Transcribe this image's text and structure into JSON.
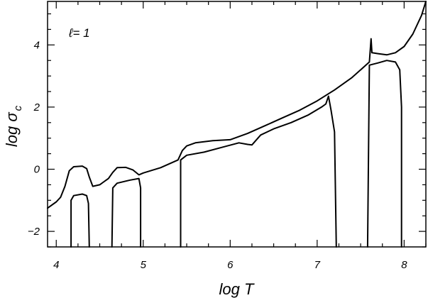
{
  "chart_data": {
    "type": "line",
    "title": "",
    "annotation": "ℓ= 1",
    "xlabel": "log T",
    "ylabel_main": "log σ",
    "ylabel_sub": "c",
    "xlim": [
      3.9,
      8.25
    ],
    "ylim": [
      -2.5,
      5.4
    ],
    "xticks": [
      4,
      5,
      6,
      7,
      8
    ],
    "xtick_labels": [
      "4",
      "5",
      "6",
      "7",
      "8"
    ],
    "yticks": [
      -2,
      0,
      2,
      4
    ],
    "ytick_labels": [
      "−2",
      "0",
      "2",
      "4"
    ],
    "x_minor_step": 0.25,
    "y_minor_step": 0.5,
    "grid": false,
    "series": [
      {
        "points": [
          [
            3.9,
            -1.25
          ],
          [
            4.0,
            -1.05
          ],
          [
            4.05,
            -0.9
          ],
          [
            4.1,
            -0.55
          ],
          [
            4.15,
            -0.05
          ],
          [
            4.2,
            0.08
          ],
          [
            4.3,
            0.1
          ],
          [
            4.35,
            0.02
          ],
          [
            4.38,
            -0.25
          ],
          [
            4.42,
            -0.55
          ],
          [
            4.5,
            -0.5
          ],
          [
            4.55,
            -0.4
          ],
          [
            4.6,
            -0.3
          ],
          [
            4.65,
            -0.1
          ],
          [
            4.7,
            0.05
          ],
          [
            4.8,
            0.06
          ],
          [
            4.88,
            -0.02
          ],
          [
            4.95,
            -0.18
          ],
          [
            5.0,
            -0.12
          ],
          [
            5.2,
            0.05
          ],
          [
            5.4,
            0.3
          ],
          [
            5.45,
            0.6
          ],
          [
            5.5,
            0.75
          ],
          [
            5.6,
            0.85
          ],
          [
            5.8,
            0.92
          ],
          [
            6.0,
            0.95
          ],
          [
            6.2,
            1.15
          ],
          [
            6.4,
            1.4
          ],
          [
            6.6,
            1.65
          ],
          [
            6.8,
            1.9
          ],
          [
            7.0,
            2.2
          ],
          [
            7.2,
            2.55
          ],
          [
            7.4,
            2.95
          ],
          [
            7.6,
            3.45
          ],
          [
            7.62,
            4.2
          ],
          [
            7.63,
            3.75
          ],
          [
            7.7,
            3.72
          ],
          [
            7.8,
            3.68
          ],
          [
            7.9,
            3.75
          ],
          [
            8.0,
            3.95
          ],
          [
            8.1,
            4.35
          ],
          [
            8.2,
            4.95
          ],
          [
            8.25,
            5.4
          ]
        ]
      },
      {
        "segments": [
          [
            [
              4.17,
              -2.5
            ],
            [
              4.17,
              -1.0
            ],
            [
              4.2,
              -0.85
            ],
            [
              4.3,
              -0.8
            ],
            [
              4.35,
              -0.85
            ],
            [
              4.37,
              -1.1
            ],
            [
              4.38,
              -2.5
            ]
          ],
          [
            [
              4.64,
              -2.5
            ],
            [
              4.65,
              -0.6
            ],
            [
              4.7,
              -0.45
            ],
            [
              4.85,
              -0.35
            ],
            [
              4.95,
              -0.3
            ],
            [
              4.97,
              -0.6
            ],
            [
              4.97,
              -2.5
            ]
          ],
          [
            [
              5.43,
              -2.5
            ],
            [
              5.43,
              0.3
            ],
            [
              5.5,
              0.45
            ],
            [
              5.7,
              0.55
            ],
            [
              5.9,
              0.7
            ],
            [
              6.1,
              0.85
            ],
            [
              6.2,
              0.8
            ],
            [
              6.25,
              0.78
            ],
            [
              6.35,
              1.1
            ],
            [
              6.5,
              1.3
            ],
            [
              6.7,
              1.5
            ],
            [
              6.9,
              1.75
            ],
            [
              7.05,
              2.0
            ],
            [
              7.1,
              2.1
            ],
            [
              7.13,
              2.35
            ],
            [
              7.16,
              1.9
            ],
            [
              7.2,
              1.2
            ],
            [
              7.22,
              -2.5
            ]
          ],
          [
            [
              7.58,
              -2.5
            ],
            [
              7.6,
              3.35
            ],
            [
              7.7,
              3.42
            ],
            [
              7.8,
              3.5
            ],
            [
              7.9,
              3.45
            ],
            [
              7.95,
              3.2
            ],
            [
              7.97,
              2.0
            ],
            [
              7.97,
              -2.5
            ]
          ]
        ]
      }
    ]
  }
}
